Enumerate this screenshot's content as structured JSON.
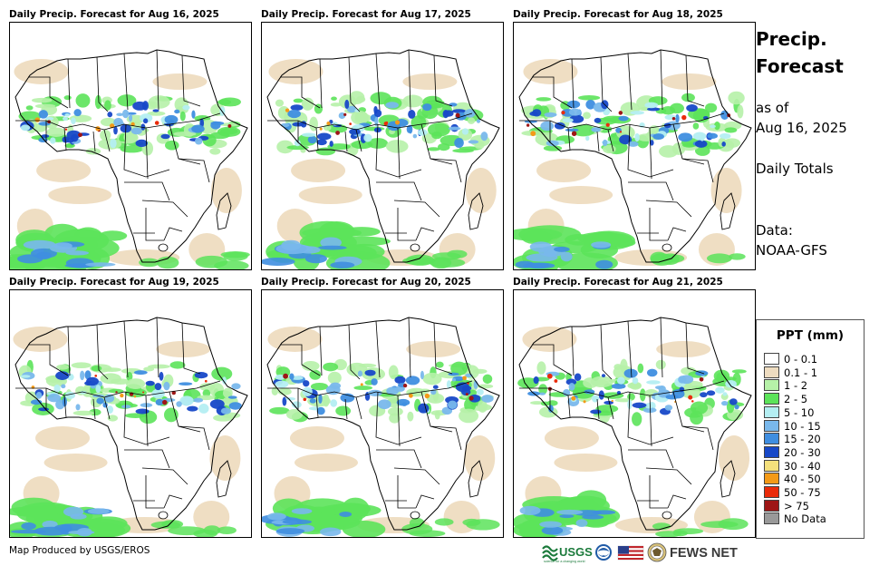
{
  "panels": [
    {
      "title": "Daily Precip. Forecast for Aug 16, 2025"
    },
    {
      "title": "Daily Precip. Forecast for Aug 17, 2025"
    },
    {
      "title": "Daily Precip. Forecast for Aug 18, 2025"
    },
    {
      "title": "Daily Precip. Forecast for Aug 19, 2025"
    },
    {
      "title": "Daily Precip. Forecast for Aug 20, 2025"
    },
    {
      "title": "Daily Precip. Forecast for Aug 21, 2025"
    }
  ],
  "side": {
    "title_line1": "Precip.",
    "title_line2": "Forecast",
    "asof_line1": "as of",
    "asof_line2": "Aug 16, 2025",
    "totals": "Daily Totals",
    "data_label": "Data:",
    "data_source": "NOAA-GFS"
  },
  "legend": {
    "title": "PPT (mm)",
    "items": [
      {
        "label": "0 - 0.1",
        "color": "#ffffff"
      },
      {
        "label": "0.1 - 1",
        "color": "#eedcc0"
      },
      {
        "label": "1 - 2",
        "color": "#b6f1a8"
      },
      {
        "label": "2 - 5",
        "color": "#5ce35a"
      },
      {
        "label": "5 - 10",
        "color": "#b4eef2"
      },
      {
        "label": "10 - 15",
        "color": "#79b8ec"
      },
      {
        "label": "15 - 20",
        "color": "#3f8ee0"
      },
      {
        "label": "20 - 30",
        "color": "#1748c8"
      },
      {
        "label": "30 - 40",
        "color": "#f4e07c"
      },
      {
        "label": "40 - 50",
        "color": "#f39a18"
      },
      {
        "label": "50 - 75",
        "color": "#ea2b0a"
      },
      {
        "label": "> 75",
        "color": "#9e1616"
      },
      {
        "label": "No Data",
        "color": "#999999"
      }
    ]
  },
  "footer": {
    "credit": "Map Produced by USGS/EROS"
  },
  "logos": {
    "usgs_text": "USGS",
    "usgs_tagline": "science for a changing world",
    "fews_text": "FEWS NET"
  }
}
